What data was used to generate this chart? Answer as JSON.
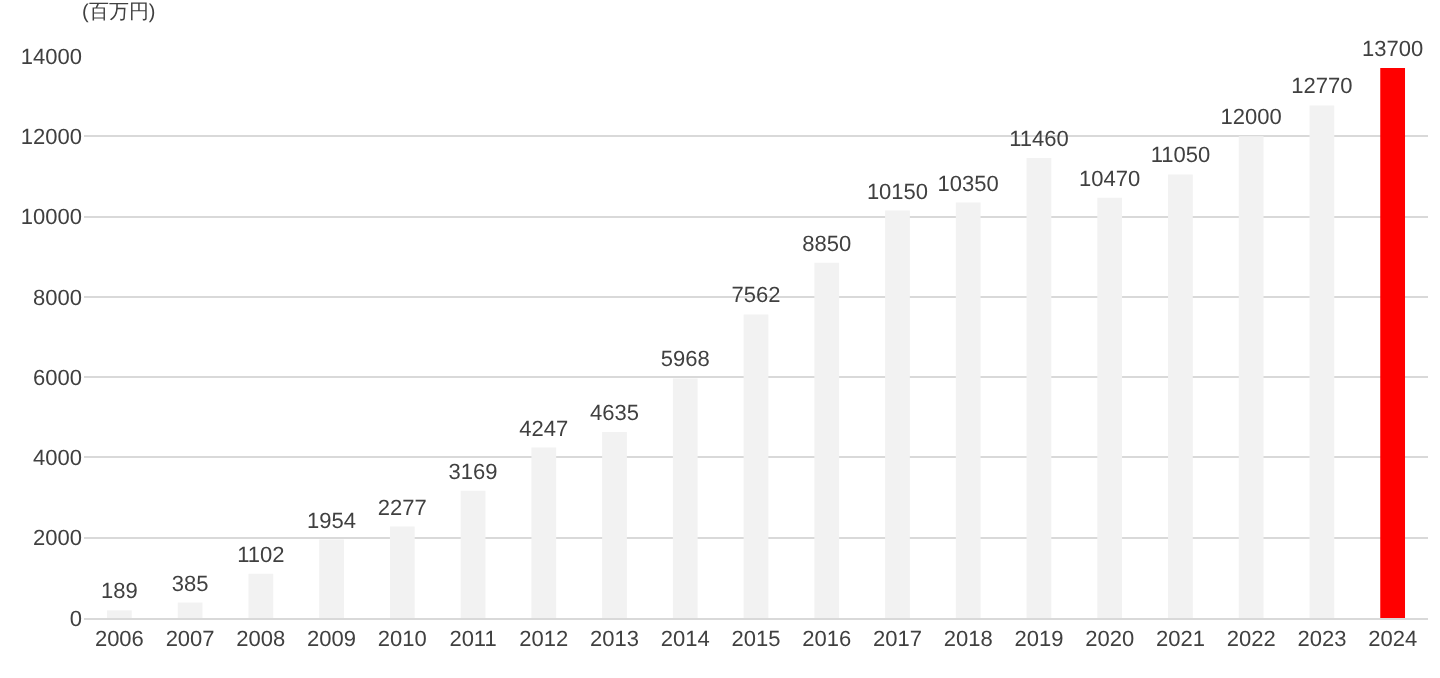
{
  "chart_data": {
    "type": "bar",
    "ylabel": "(百万円)",
    "categories": [
      "2006",
      "2007",
      "2008",
      "2009",
      "2010",
      "2011",
      "2012",
      "2013",
      "2014",
      "2015",
      "2016",
      "2017",
      "2018",
      "2019",
      "2020",
      "2021",
      "2022",
      "2023",
      "2024"
    ],
    "values": [
      189,
      385,
      1102,
      1954,
      2277,
      3169,
      4247,
      4635,
      5968,
      7562,
      8850,
      10150,
      10350,
      11460,
      10470,
      11050,
      12000,
      12770,
      13700
    ],
    "colors": [
      "#f2f2f2",
      "#f2f2f2",
      "#f2f2f2",
      "#f2f2f2",
      "#f2f2f2",
      "#f2f2f2",
      "#f2f2f2",
      "#f2f2f2",
      "#f2f2f2",
      "#f2f2f2",
      "#f2f2f2",
      "#f2f2f2",
      "#f2f2f2",
      "#f2f2f2",
      "#f2f2f2",
      "#f2f2f2",
      "#f2f2f2",
      "#f2f2f2",
      "#ff0000"
    ],
    "ylim": [
      0,
      14000
    ],
    "yticks": [
      0,
      2000,
      4000,
      6000,
      8000,
      10000,
      12000,
      14000
    ],
    "grid": "y",
    "data_labels": true,
    "legend": false
  }
}
